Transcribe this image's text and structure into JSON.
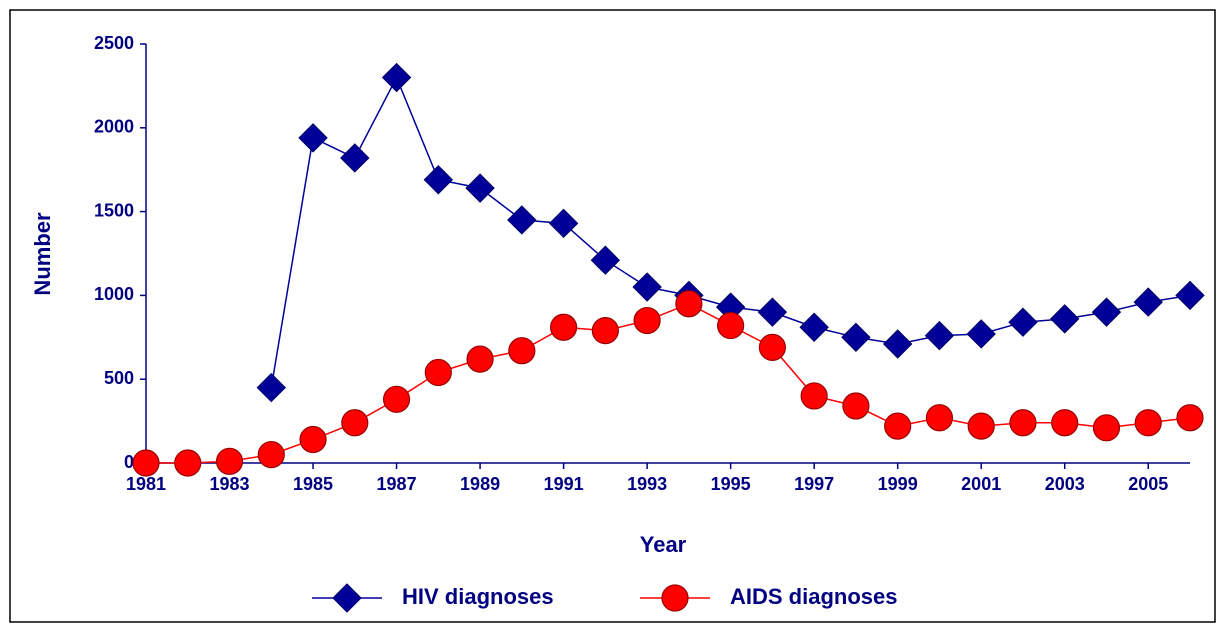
{
  "chart_data": {
    "type": "line",
    "x_label": "Year",
    "y_label": "Number",
    "x": [
      1981,
      1982,
      1983,
      1984,
      1985,
      1986,
      1987,
      1988,
      1989,
      1990,
      1991,
      1992,
      1993,
      1994,
      1995,
      1996,
      1997,
      1998,
      1999,
      2000,
      2001,
      2002,
      2003,
      2004,
      2005,
      2006
    ],
    "xlim": [
      1981,
      2006
    ],
    "xticks": [
      1981,
      1983,
      1985,
      1987,
      1989,
      1991,
      1993,
      1995,
      1997,
      1999,
      2001,
      2003,
      2005
    ],
    "ylim": [
      0,
      2500
    ],
    "yticks": [
      0,
      500,
      1000,
      1500,
      2000,
      2500
    ],
    "legend": "bottom",
    "series": [
      {
        "name": "HIV diagnoses",
        "color": "#000099",
        "marker": "diamond",
        "values": [
          null,
          null,
          null,
          450,
          1940,
          1820,
          2300,
          1690,
          1640,
          1450,
          1430,
          1210,
          1050,
          1000,
          930,
          900,
          810,
          750,
          710,
          760,
          770,
          840,
          860,
          900,
          960,
          1000
        ]
      },
      {
        "name": "AIDS diagnoses",
        "color": "#ff0000",
        "marker": "circle",
        "values": [
          0,
          0,
          10,
          50,
          140,
          240,
          380,
          540,
          620,
          670,
          810,
          790,
          850,
          950,
          820,
          690,
          400,
          340,
          220,
          270,
          220,
          240,
          240,
          210,
          240,
          270
        ]
      }
    ]
  }
}
